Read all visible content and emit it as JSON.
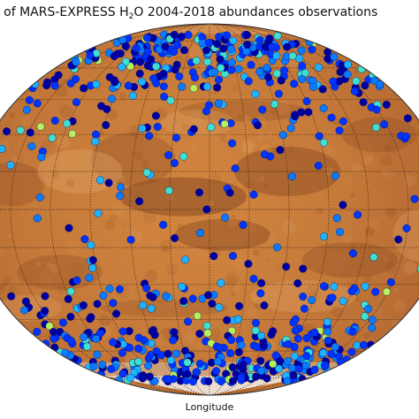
{
  "title": {
    "before": "ution of MARS-EXPRESS H",
    "subscript": "2",
    "after": "O 2004-2018 abundances observations"
  },
  "xlabel": "Longitude",
  "projection": "mollweide",
  "central_longitude": 0,
  "graticule": {
    "lon_step_deg": 30,
    "lat_step_deg": 15,
    "style": "dotted"
  },
  "background": "Mars surface albedo map",
  "colors": {
    "mars_base": "#c77b3c",
    "mars_dark": "#8a4a22",
    "mars_light": "#e2a466",
    "polar_ice": "#f4f0ea",
    "graticule": "#2a1a10",
    "point_colormap": [
      "#0000a0",
      "#0033ff",
      "#0a7bff",
      "#1fb4ff",
      "#3fe0d0",
      "#b8f05a"
    ]
  },
  "observations_note": "Observation footprints concentrated at high northern and southern latitudes; a sparser scatter at mid/low latitudes.",
  "observations": {
    "band_seeds": [
      {
        "lat_min": 50,
        "lat_max": 80,
        "count": 260
      },
      {
        "lat_min": 28,
        "lat_max": 50,
        "count": 70
      },
      {
        "lat_min": -28,
        "lat_max": 28,
        "count": 75
      },
      {
        "lat_min": -50,
        "lat_max": -28,
        "count": 90
      },
      {
        "lat_min": -78,
        "lat_max": -50,
        "count": 290
      }
    ]
  }
}
